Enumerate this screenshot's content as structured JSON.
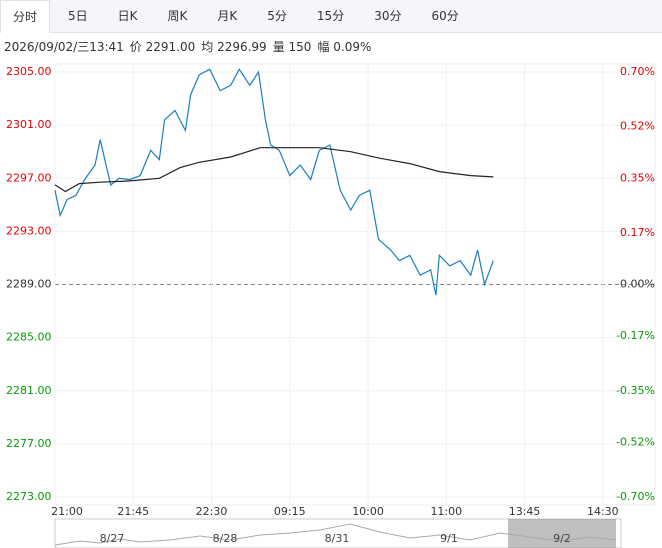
{
  "tabs": [
    "分时",
    "5日",
    "日K",
    "周K",
    "月K",
    "5分",
    "15分",
    "30分",
    "60分"
  ],
  "active_tab": 0,
  "info": [
    "2026/09/02/三13:41",
    "价 2291.00",
    "均 2296.99",
    "量 150",
    "幅 0.09%"
  ],
  "navigator": {
    "dates": [
      "8/27",
      "8/28",
      "8/31",
      "9/1",
      "9/2"
    ]
  },
  "chart_data": {
    "type": "line",
    "prev_close": 2289,
    "xlim": [
      0,
      345
    ],
    "xticks": [
      {
        "value": 0,
        "label": "21:00"
      },
      {
        "value": 45,
        "label": "21:45"
      },
      {
        "value": 90,
        "label": "22:30"
      },
      {
        "value": 135,
        "label": "09:15"
      },
      {
        "value": 180,
        "label": "10:00"
      },
      {
        "value": 225,
        "label": "11:00"
      },
      {
        "value": 270,
        "label": "13:45"
      },
      {
        "value": 315,
        "label": "14:30"
      }
    ],
    "ylim": [
      2273,
      2305
    ],
    "yticks": [
      {
        "value": 2305,
        "label": "2305.00"
      },
      {
        "value": 2301,
        "label": "2301.00"
      },
      {
        "value": 2297,
        "label": "2297.00"
      },
      {
        "value": 2293,
        "label": "2293.00"
      },
      {
        "value": 2289,
        "label": "2289.00"
      },
      {
        "value": 2285,
        "label": "2285.00"
      },
      {
        "value": 2281,
        "label": "2281.00"
      },
      {
        "value": 2277,
        "label": "2277.00"
      },
      {
        "value": 2273,
        "label": "2273.00"
      }
    ],
    "y2lim": [
      -0.7,
      0.7
    ],
    "y2ticks": [
      {
        "value": 0.7,
        "label": "0.70%"
      },
      {
        "value": 0.52,
        "label": "0.52%"
      },
      {
        "value": 0.35,
        "label": "0.35%"
      },
      {
        "value": 0.17,
        "label": "0.17%"
      },
      {
        "value": 0,
        "label": "0.00%"
      },
      {
        "value": -0.17,
        "label": "-0.17%"
      },
      {
        "value": -0.35,
        "label": "-0.35%"
      },
      {
        "value": -0.52,
        "label": "-0.52%"
      },
      {
        "value": -0.7,
        "label": "-0.70%"
      }
    ],
    "grid": true,
    "up_color": "#e60000",
    "down_color": "#079a07",
    "flat_color": "#333333",
    "series": [
      {
        "color": "#1a7fc1",
        "x": [
          0,
          3,
          7,
          12,
          17,
          23,
          26,
          32,
          37,
          43,
          49,
          55,
          60,
          63,
          69,
          75,
          78,
          83,
          89,
          95,
          101,
          106,
          112,
          117,
          121,
          124,
          129,
          135,
          141,
          147,
          152,
          158,
          164,
          170,
          175,
          181,
          186,
          193,
          198,
          204,
          210,
          216,
          219,
          221,
          227,
          233,
          239,
          243,
          247,
          252
        ],
        "values": [
          2296.1,
          2294.2,
          2295.4,
          2295.7,
          2296.9,
          2298.0,
          2299.9,
          2296.5,
          2297.0,
          2296.9,
          2297.2,
          2299.1,
          2298.4,
          2301.4,
          2302.1,
          2300.6,
          2303.3,
          2304.8,
          2305.2,
          2303.6,
          2304.0,
          2305.2,
          2304.0,
          2305.0,
          2301.4,
          2299.5,
          2299.1,
          2297.2,
          2298.0,
          2296.9,
          2299.1,
          2299.5,
          2296.1,
          2294.6,
          2295.7,
          2296.1,
          2292.4,
          2291.6,
          2290.8,
          2291.2,
          2289.7,
          2290.1,
          2288.2,
          2291.2,
          2290.4,
          2290.8,
          2289.7,
          2291.6,
          2289.0,
          2290.8
        ]
      },
      {
        "color": "#222222",
        "x": [
          0,
          6,
          14,
          26,
          43,
          60,
          72,
          83,
          101,
          118,
          135,
          152,
          170,
          187,
          204,
          221,
          239,
          252
        ],
        "values": [
          2296.5,
          2296.0,
          2296.6,
          2296.7,
          2296.8,
          2297.0,
          2297.8,
          2298.2,
          2298.6,
          2299.3,
          2299.3,
          2299.3,
          2299.0,
          2298.5,
          2298.1,
          2297.5,
          2297.2,
          2297.1
        ]
      }
    ]
  }
}
